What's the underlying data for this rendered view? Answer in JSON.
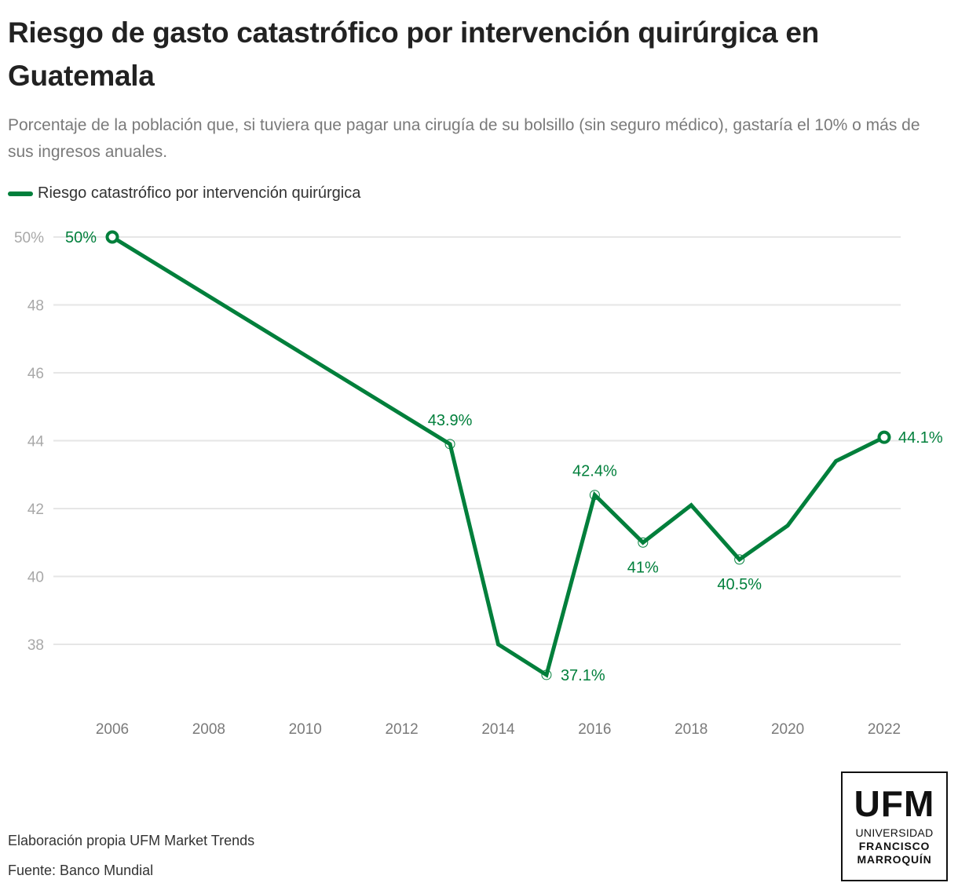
{
  "header": {
    "title": "Riesgo de gasto catastrófico por intervención quirúrgica en Guatemala",
    "subtitle": "Porcentaje de la población que, si tuviera que pagar una cirugía de su bolsillo (sin seguro médico), gastaría el 10% o más de sus ingresos anuales."
  },
  "legend": {
    "label": "Riesgo catastrófico por intervención quirúrgica",
    "color": "#007f3b"
  },
  "chart_data": {
    "type": "line",
    "title": "Riesgo de gasto catastrófico por intervención quirúrgica en Guatemala",
    "xlabel": "",
    "ylabel": "",
    "xlim": [
      2006,
      2022
    ],
    "ylim": [
      36.5,
      50
    ],
    "grid": true,
    "legend_position": "top-left",
    "x_ticks": [
      2006,
      2008,
      2010,
      2012,
      2014,
      2016,
      2018,
      2020,
      2022
    ],
    "x_tick_labels": [
      "2006",
      "2008",
      "2010",
      "2012",
      "2014",
      "2016",
      "2018",
      "2020",
      "2022"
    ],
    "y_ticks": [
      38,
      40,
      42,
      44,
      46,
      48,
      50
    ],
    "y_tick_labels": [
      "38",
      "40",
      "42",
      "44",
      "46",
      "48",
      "50%"
    ],
    "series": [
      {
        "name": "Riesgo catastrófico por intervención quirúrgica",
        "color": "#007f3b",
        "x": [
          2006,
          2013,
          2014,
          2015,
          2016,
          2017,
          2018,
          2019,
          2020,
          2021,
          2022
        ],
        "values": [
          50,
          43.9,
          38.0,
          37.1,
          42.4,
          41,
          42.1,
          40.5,
          41.5,
          43.4,
          44.1
        ]
      }
    ],
    "annotations": [
      {
        "x": 2006,
        "y": 50,
        "text": "50%",
        "position": "left",
        "marker": "endpoint"
      },
      {
        "x": 2013,
        "y": 43.9,
        "text": "43.9%",
        "position": "above",
        "marker": "hollow"
      },
      {
        "x": 2015,
        "y": 37.1,
        "text": "37.1%",
        "position": "right",
        "marker": "hollow"
      },
      {
        "x": 2016,
        "y": 42.4,
        "text": "42.4%",
        "position": "above",
        "marker": "hollow"
      },
      {
        "x": 2017,
        "y": 41,
        "text": "41%",
        "position": "below",
        "marker": "hollow"
      },
      {
        "x": 2019,
        "y": 40.5,
        "text": "40.5%",
        "position": "below",
        "marker": "hollow"
      },
      {
        "x": 2022,
        "y": 44.1,
        "text": "44.1%",
        "position": "right",
        "marker": "endpoint"
      }
    ]
  },
  "footer": {
    "credit": "Elaboración propia UFM Market Trends",
    "source": "Fuente: Banco Mundial"
  },
  "logo": {
    "acronym": "UFM",
    "line1": "UNIVERSIDAD",
    "line2": "FRANCISCO",
    "line3": "MARROQUÍN"
  }
}
